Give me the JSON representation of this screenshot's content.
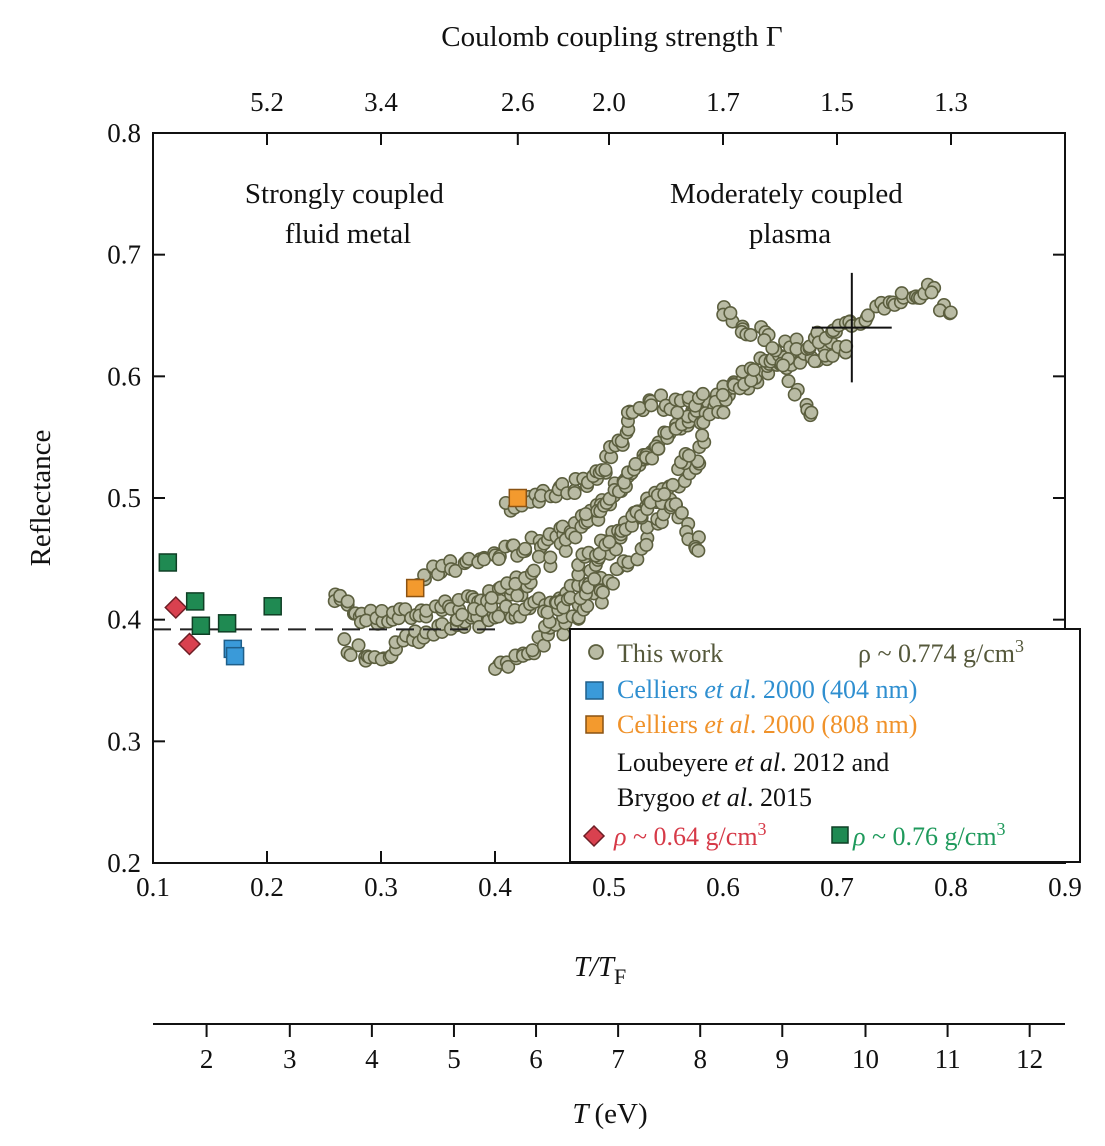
{
  "chart_data": {
    "type": "scatter",
    "top_axis": {
      "label": "Coulomb coupling strength Γ",
      "ticks": [
        {
          "x": 0.2,
          "label": "5.2"
        },
        {
          "x": 0.3,
          "label": "3.4"
        },
        {
          "x": 0.42,
          "label": "2.6"
        },
        {
          "x": 0.5,
          "label": "2.0"
        },
        {
          "x": 0.6,
          "label": "1.7"
        },
        {
          "x": 0.7,
          "label": "1.5"
        },
        {
          "x": 0.8,
          "label": "1.3"
        }
      ]
    },
    "x_axis": {
      "label_main": "T/T",
      "label_sub": "F",
      "range": [
        0.1,
        0.9
      ],
      "ticks": [
        "0.1",
        "0.2",
        "0.3",
        "0.4",
        "0.5",
        "0.6",
        "0.7",
        "0.8",
        "0.9"
      ]
    },
    "y_axis": {
      "label": "Reflectance",
      "range": [
        0.2,
        0.8
      ],
      "ticks": [
        "0.2",
        "0.3",
        "0.4",
        "0.5",
        "0.6",
        "0.7",
        "0.8"
      ]
    },
    "temperature_axis": {
      "label_main": "T",
      "label_unit": "(eV)",
      "ticks": [
        {
          "x": 0.147,
          "label": "2"
        },
        {
          "x": 0.22,
          "label": "3"
        },
        {
          "x": 0.292,
          "label": "4"
        },
        {
          "x": 0.364,
          "label": "5"
        },
        {
          "x": 0.436,
          "label": "6"
        },
        {
          "x": 0.508,
          "label": "7"
        },
        {
          "x": 0.58,
          "label": "8"
        },
        {
          "x": 0.652,
          "label": "9"
        },
        {
          "x": 0.725,
          "label": "10"
        },
        {
          "x": 0.797,
          "label": "11"
        },
        {
          "x": 0.869,
          "label": "12"
        }
      ]
    },
    "region_labels": [
      {
        "lines": [
          "Strongly coupled",
          "fluid metal"
        ]
      },
      {
        "lines": [
          "Moderately coupled",
          "plasma"
        ]
      }
    ],
    "reference_line": {
      "y": 0.392,
      "x_range": [
        0.1,
        0.4
      ]
    },
    "error_bar": {
      "x": 0.713,
      "y": 0.64,
      "xerr": 0.035,
      "yerr": 0.045
    },
    "series": [
      {
        "name": "This work",
        "marker": "circle",
        "color": "#b9bba4",
        "edge": "#5c5f3f",
        "segments": [
          {
            "x": [
              0.26,
              0.275,
              0.29,
              0.31,
              0.33,
              0.35,
              0.37,
              0.39,
              0.41,
              0.43
            ],
            "y": [
              0.42,
              0.41,
              0.4,
              0.402,
              0.405,
              0.41,
              0.413,
              0.417,
              0.42,
              0.426
            ]
          },
          {
            "x": [
              0.27,
              0.29,
              0.31,
              0.33,
              0.35,
              0.37,
              0.39,
              0.41,
              0.43,
              0.45,
              0.47,
              0.49
            ],
            "y": [
              0.38,
              0.37,
              0.375,
              0.385,
              0.39,
              0.395,
              0.4,
              0.405,
              0.41,
              0.415,
              0.425,
              0.44
            ]
          },
          {
            "x": [
              0.33,
              0.35,
              0.37,
              0.39,
              0.41,
              0.43,
              0.45,
              0.47,
              0.49,
              0.51,
              0.53,
              0.55,
              0.57,
              0.59,
              0.61,
              0.63,
              0.65,
              0.67,
              0.69,
              0.71
            ],
            "y": [
              0.43,
              0.44,
              0.445,
              0.45,
              0.455,
              0.46,
              0.47,
              0.48,
              0.49,
              0.51,
              0.53,
              0.55,
              0.565,
              0.58,
              0.59,
              0.6,
              0.61,
              0.615,
              0.62,
              0.625
            ]
          },
          {
            "x": [
              0.37,
              0.4,
              0.43,
              0.46,
              0.48,
              0.5,
              0.52,
              0.54,
              0.56,
              0.58,
              0.6,
              0.62,
              0.64,
              0.66,
              0.68,
              0.7,
              0.72,
              0.74,
              0.76,
              0.78,
              0.8
            ],
            "y": [
              0.4,
              0.42,
              0.44,
              0.46,
              0.48,
              0.5,
              0.52,
              0.54,
              0.555,
              0.57,
              0.585,
              0.6,
              0.615,
              0.625,
              0.63,
              0.635,
              0.645,
              0.66,
              0.665,
              0.67,
              0.655
            ]
          },
          {
            "x": [
              0.4,
              0.42,
              0.44,
              0.46,
              0.48,
              0.5,
              0.52,
              0.54,
              0.56,
              0.58
            ],
            "y": [
              0.36,
              0.37,
              0.38,
              0.395,
              0.41,
              0.43,
              0.45,
              0.475,
              0.5,
              0.53
            ]
          },
          {
            "x": [
              0.44,
              0.46,
              0.48,
              0.5,
              0.52,
              0.54,
              0.56,
              0.58,
              0.6
            ],
            "y": [
              0.4,
              0.41,
              0.43,
              0.46,
              0.48,
              0.5,
              0.52,
              0.55,
              0.58
            ]
          },
          {
            "x": [
              0.41,
              0.43,
              0.45,
              0.47,
              0.49,
              0.5,
              0.51,
              0.52,
              0.54,
              0.56,
              0.58
            ],
            "y": [
              0.49,
              0.5,
              0.505,
              0.51,
              0.52,
              0.53,
              0.55,
              0.575,
              0.58,
              0.575,
              0.585
            ]
          },
          {
            "x": [
              0.47,
              0.49,
              0.51,
              0.53,
              0.55,
              0.57,
              0.58
            ],
            "y": [
              0.44,
              0.46,
              0.47,
              0.49,
              0.5,
              0.48,
              0.455
            ]
          },
          {
            "x": [
              0.6,
              0.62,
              0.64,
              0.66,
              0.68
            ],
            "y": [
              0.655,
              0.64,
              0.63,
              0.6,
              0.565
            ]
          }
        ]
      },
      {
        "name": "Celliers et al. 2000 (404 nm)",
        "marker": "square",
        "color": "#3a9ad9",
        "edge": "#1f5f8a",
        "x": [
          0.17,
          0.172
        ],
        "y": [
          0.376,
          0.37
        ]
      },
      {
        "name": "Celliers et al. 2000 (808 nm)",
        "marker": "square",
        "color": "#f39a2e",
        "edge": "#8a5212",
        "x": [
          0.33,
          0.42
        ],
        "y": [
          0.426,
          0.5
        ]
      },
      {
        "name": "ρ ~ 0.64 g/cm3",
        "marker": "diamond",
        "color": "#d9414f",
        "edge": "#6d1e25",
        "x": [
          0.12,
          0.132
        ],
        "y": [
          0.41,
          0.38
        ]
      },
      {
        "name": "ρ ~ 0.76 g/cm3",
        "marker": "square",
        "color": "#1f8a52",
        "edge": "#0f3f25",
        "x": [
          0.113,
          0.137,
          0.142,
          0.165,
          0.205
        ],
        "y": [
          0.447,
          0.415,
          0.395,
          0.397,
          0.411
        ]
      }
    ],
    "legend": {
      "position": "lower-right",
      "this_work": "This work",
      "this_work_density": "ρ ~ 0.774 g/cm",
      "this_work_density_sup": "3",
      "celliers_404": {
        "pre": "Celliers ",
        "etal": "et al",
        "post": ". 2000 (404 nm)",
        "color": "#2f8fd0"
      },
      "celliers_808": {
        "pre": "Celliers ",
        "etal": "et al",
        "post": ". 2000 (808 nm)",
        "color": "#f0922a"
      },
      "loubeyere_line1": {
        "pre": "Loubeyere ",
        "etal": "et al",
        "post": ". 2012 and"
      },
      "loubeyere_line2": {
        "pre": "Brygoo ",
        "etal": "et al",
        "post": ". 2015"
      },
      "rho_064": {
        "rho": "ρ",
        "text": " ~ 0.64 g/cm",
        "sup": "3",
        "color": "#d63a48"
      },
      "rho_076": {
        "rho": "ρ",
        "text": " ~ 0.76 g/cm",
        "sup": "3",
        "color": "#1f9a5c"
      },
      "this_work_color": "#55583b"
    }
  }
}
